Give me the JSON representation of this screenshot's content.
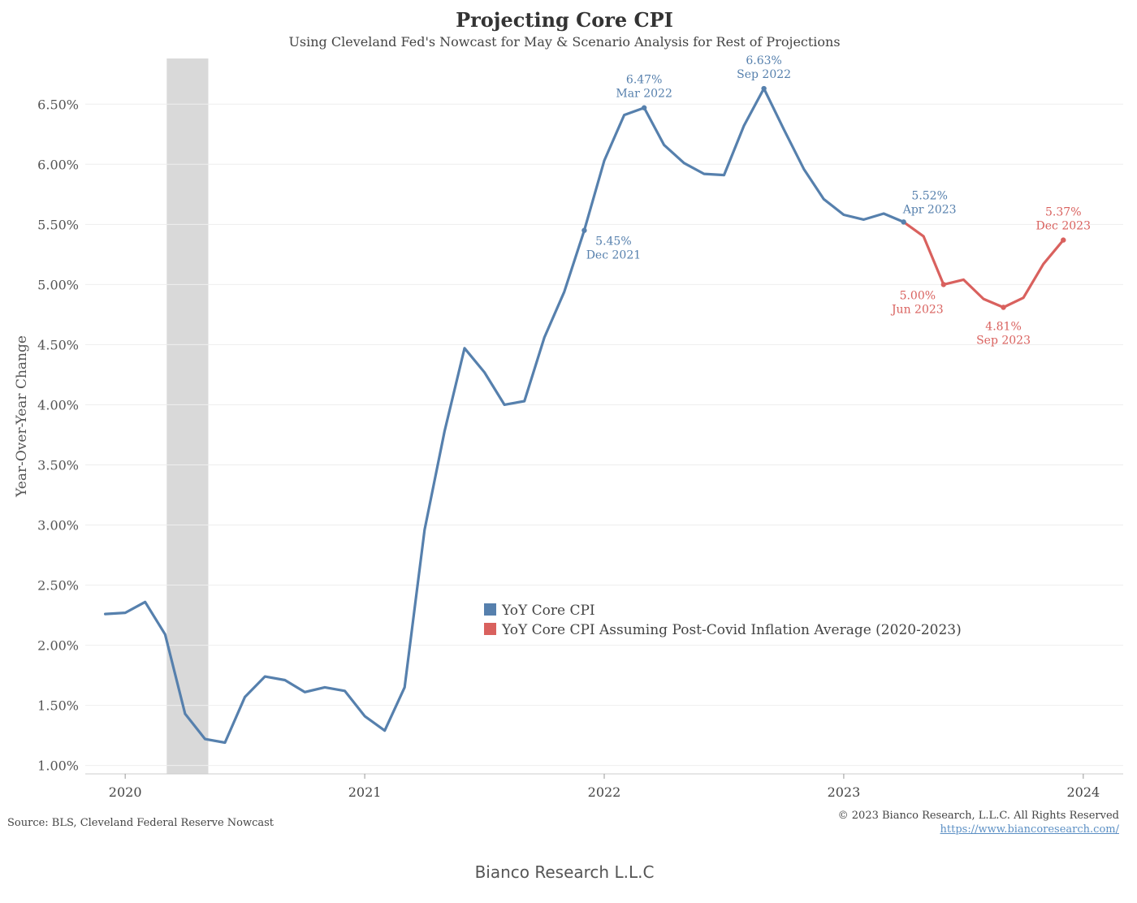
{
  "title": "Projecting Core CPI",
  "subtitle": "Using Cleveland Fed's Nowcast for May & Scenario Analysis for Rest of Projections",
  "source": "Source: BLS, Cleveland Federal Reserve Nowcast",
  "copyright": "© 2023 Bianco Research, L.L.C. All Rights Reserved",
  "website": "https://www.biancoresearch.com/",
  "footer": "Bianco Research L.L.C",
  "chart_data": {
    "type": "line",
    "ylabel": "Year-Over-Year Change",
    "ylim": [
      0.93,
      6.88
    ],
    "yticks": [
      "1.00%",
      "1.50%",
      "2.00%",
      "2.50%",
      "3.00%",
      "3.50%",
      "4.00%",
      "4.50%",
      "5.00%",
      "5.50%",
      "6.00%",
      "6.50%"
    ],
    "ytick_values": [
      1.0,
      1.5,
      2.0,
      2.5,
      3.0,
      3.5,
      4.0,
      4.5,
      5.0,
      5.5,
      6.0,
      6.5
    ],
    "xlim": [
      "2019-11",
      "2024-03"
    ],
    "xticks": [
      "2020",
      "2021",
      "2022",
      "2023",
      "2024"
    ],
    "grid": "horizontal",
    "legend_position": "center",
    "recession_shading": {
      "start": "2020-03",
      "end": "2020-05"
    },
    "series": [
      {
        "name": "YoY Core CPI",
        "color": "#5680ad",
        "x": [
          "2019-12",
          "2020-01",
          "2020-02",
          "2020-03",
          "2020-04",
          "2020-05",
          "2020-06",
          "2020-07",
          "2020-08",
          "2020-09",
          "2020-10",
          "2020-11",
          "2020-12",
          "2021-01",
          "2021-02",
          "2021-03",
          "2021-04",
          "2021-05",
          "2021-06",
          "2021-07",
          "2021-08",
          "2021-09",
          "2021-10",
          "2021-11",
          "2021-12",
          "2022-01",
          "2022-02",
          "2022-03",
          "2022-04",
          "2022-05",
          "2022-06",
          "2022-07",
          "2022-08",
          "2022-09",
          "2022-10",
          "2022-11",
          "2022-12",
          "2023-01",
          "2023-02",
          "2023-03",
          "2023-04"
        ],
        "values": [
          2.26,
          2.27,
          2.36,
          2.09,
          1.43,
          1.22,
          1.19,
          1.57,
          1.74,
          1.71,
          1.61,
          1.65,
          1.62,
          1.41,
          1.29,
          1.65,
          2.96,
          3.78,
          4.47,
          4.27,
          4.0,
          4.03,
          4.56,
          4.94,
          5.45,
          6.03,
          6.41,
          6.47,
          6.16,
          6.01,
          5.92,
          5.91,
          6.32,
          6.63,
          6.29,
          5.96,
          5.71,
          5.58,
          5.54,
          5.59,
          5.52
        ]
      },
      {
        "name": "YoY Core CPI Assuming Post-Covid Inflation Average (2020-2023)",
        "color": "#d9615e",
        "x": [
          "2023-04",
          "2023-05",
          "2023-06",
          "2023-07",
          "2023-08",
          "2023-09",
          "2023-10",
          "2023-11",
          "2023-12"
        ],
        "values": [
          5.52,
          5.4,
          5.0,
          5.04,
          4.88,
          4.81,
          4.89,
          5.17,
          5.37
        ]
      }
    ],
    "annotations": [
      {
        "x": "2021-12",
        "y": 5.45,
        "label": "5.45%",
        "sublabel": "Dec 2021",
        "color": "#5680ad",
        "pos": "below-right"
      },
      {
        "x": "2022-03",
        "y": 6.47,
        "label": "6.47%",
        "sublabel": "Mar 2022",
        "color": "#5680ad",
        "pos": "above"
      },
      {
        "x": "2022-09",
        "y": 6.63,
        "label": "6.63%",
        "sublabel": "Sep 2022",
        "color": "#5680ad",
        "pos": "above"
      },
      {
        "x": "2023-04",
        "y": 5.52,
        "label": "5.52%",
        "sublabel": "Apr 2023",
        "color": "#5680ad",
        "pos": "above-right"
      },
      {
        "x": "2023-06",
        "y": 5.0,
        "label": "5.00%",
        "sublabel": "Jun 2023",
        "color": "#d9615e",
        "pos": "below-left"
      },
      {
        "x": "2023-09",
        "y": 4.81,
        "label": "4.81%",
        "sublabel": "Sep 2023",
        "color": "#d9615e",
        "pos": "below"
      },
      {
        "x": "2023-12",
        "y": 5.37,
        "label": "5.37%",
        "sublabel": "Dec 2023",
        "color": "#d9615e",
        "pos": "above"
      }
    ]
  }
}
